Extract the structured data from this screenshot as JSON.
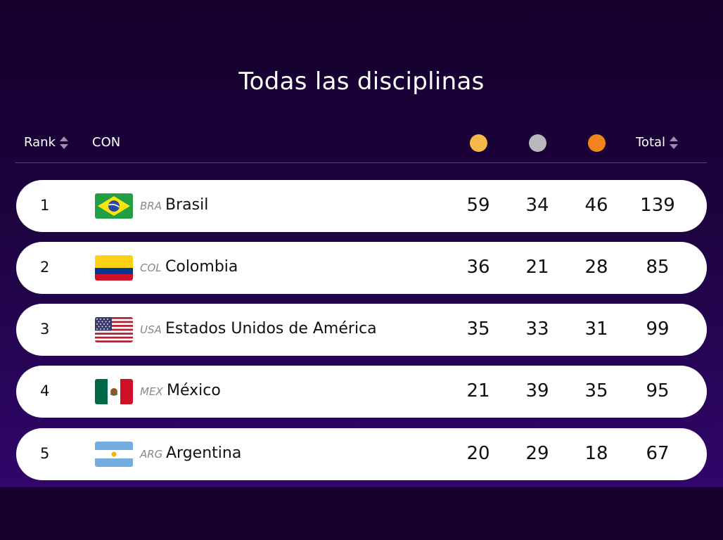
{
  "title": "Todas las disciplinas",
  "header": {
    "rank": "Rank",
    "con": "CON",
    "total": "Total"
  },
  "colors": {
    "gold": "#f6b84a",
    "silver": "#b8b8bc",
    "bronze": "#f2841d"
  },
  "rows": [
    {
      "rank": "1",
      "code": "BRA",
      "name": "Brasil",
      "gold": "59",
      "silver": "34",
      "bronze": "46",
      "total": "139"
    },
    {
      "rank": "2",
      "code": "COL",
      "name": "Colombia",
      "gold": "36",
      "silver": "21",
      "bronze": "28",
      "total": "85"
    },
    {
      "rank": "3",
      "code": "USA",
      "name": "Estados Unidos de América",
      "gold": "35",
      "silver": "33",
      "bronze": "31",
      "total": "99"
    },
    {
      "rank": "4",
      "code": "MEX",
      "name": "México",
      "gold": "21",
      "silver": "39",
      "bronze": "35",
      "total": "95"
    },
    {
      "rank": "5",
      "code": "ARG",
      "name": "Argentina",
      "gold": "20",
      "silver": "29",
      "bronze": "18",
      "total": "67"
    }
  ]
}
